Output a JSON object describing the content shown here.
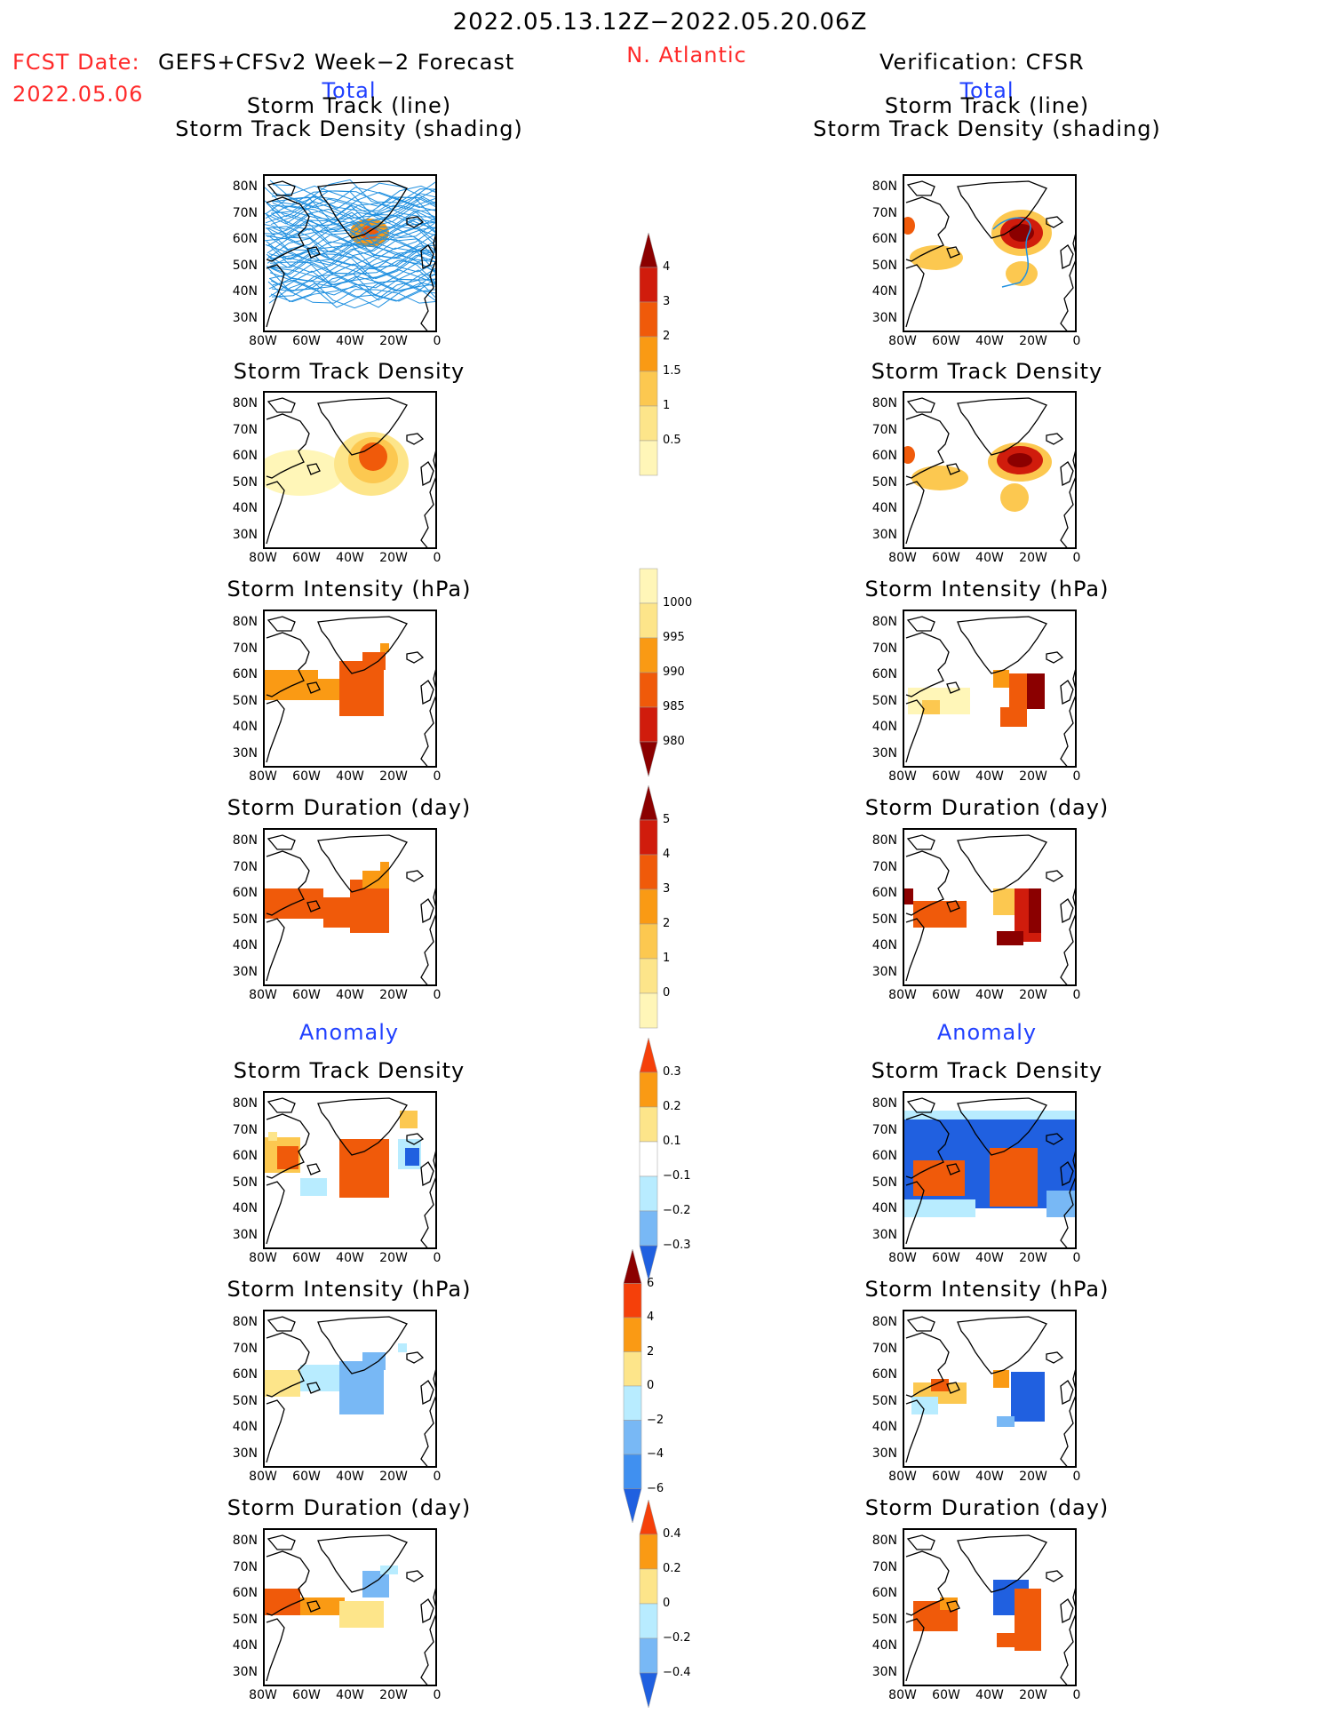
{
  "header": {
    "date_range": "2022.05.13.12Z−2022.05.20.06Z",
    "region": "N. Atlantic",
    "fcst_label": "FCST Date:",
    "fcst_model": "GEFS+CFSv2 Week−2 Forecast",
    "fcst_date": "2022.05.06",
    "verification": "Verification: CFSR"
  },
  "sections": {
    "total": "Total",
    "anomaly": "Anomaly"
  },
  "panel_titles": {
    "track_line": "Storm Track (line)",
    "track_shading": "Storm Track Density (shading)",
    "density": "Storm Track Density",
    "intensity": "Storm Intensity (hPa)",
    "duration": "Storm Duration (day)"
  },
  "axes": {
    "lat_labels": [
      "80N",
      "70N",
      "60N",
      "50N",
      "40N",
      "30N"
    ],
    "lon_labels": [
      "80W",
      "60W",
      "40W",
      "20W",
      "0"
    ]
  },
  "colorbars": {
    "density_total": {
      "labels": [
        "4",
        "3",
        "2",
        "1.5",
        "1",
        "0.5"
      ],
      "colors": [
        "#8b0000",
        "#d01c0c",
        "#f05a0a",
        "#fa9a14",
        "#fcc850",
        "#fde58a",
        "#fff6b8"
      ]
    },
    "intensity_total": {
      "labels": [
        "1000",
        "995",
        "990",
        "985",
        "980"
      ],
      "colors": [
        "#fff6b8",
        "#fde58a",
        "#fa9a14",
        "#f05a0a",
        "#d01c0c",
        "#8b0000"
      ]
    },
    "duration_total": {
      "labels": [
        "5",
        "4",
        "3",
        "2",
        "1",
        "0"
      ],
      "colors": [
        "#8b0000",
        "#d01c0c",
        "#f05a0a",
        "#fa9a14",
        "#fcc850",
        "#fde58a",
        "#fff6b8"
      ]
    },
    "density_anom": {
      "labels": [
        "0.3",
        "0.2",
        "0.1",
        "−0.1",
        "−0.2",
        "−0.3"
      ],
      "colors": [
        "#f5400a",
        "#fa9a14",
        "#fde58a",
        "#ffffff",
        "#b8ecff",
        "#78b8f5",
        "#2060e0"
      ]
    },
    "intensity_anom": {
      "labels": [
        "6",
        "4",
        "2",
        "0",
        "−2",
        "−4",
        "−6"
      ],
      "colors": [
        "#8b0000",
        "#f5400a",
        "#fa9a14",
        "#fde58a",
        "#b8ecff",
        "#78b8f5",
        "#4090f0",
        "#2060e0"
      ]
    },
    "duration_anom": {
      "labels": [
        "0.4",
        "0.2",
        "0",
        "−0.2",
        "−0.4"
      ],
      "colors": [
        "#f5400a",
        "#fa9a14",
        "#fde58a",
        "#b8ecff",
        "#78b8f5",
        "#2060e0"
      ]
    }
  },
  "colors": {
    "track_line": "#2090e0",
    "title_red": "#ff2a2a",
    "title_blue": "#2040ff"
  }
}
